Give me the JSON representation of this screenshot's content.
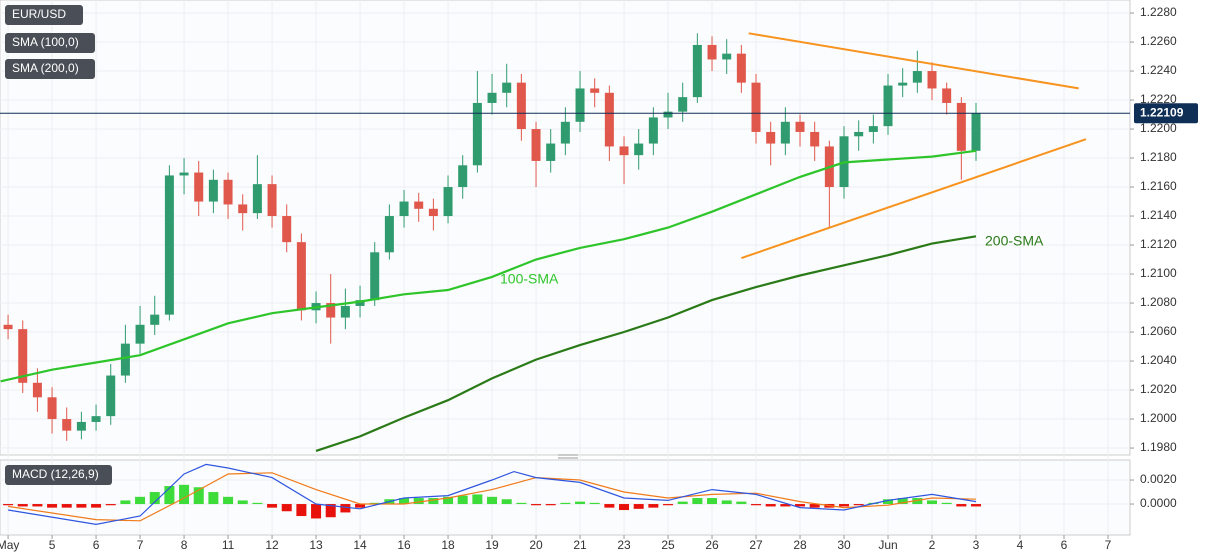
{
  "chart_data": [
    {
      "type": "candlestick",
      "title": "EUR/USD",
      "x": [
        0,
        1,
        2,
        3,
        4,
        5,
        6,
        7,
        8,
        9,
        10,
        11,
        12,
        13,
        14,
        15,
        16,
        17,
        18,
        19,
        20,
        21,
        22,
        23,
        24,
        25,
        26,
        27,
        28,
        29,
        30,
        31,
        32,
        33,
        34,
        35,
        36,
        37,
        38,
        39,
        40,
        41,
        42,
        43,
        44,
        45,
        46,
        47,
        48,
        49,
        50,
        51,
        52,
        53,
        54,
        55,
        56,
        57,
        58,
        59,
        60,
        61,
        62,
        63,
        64,
        65,
        66
      ],
      "open": [
        1.2065,
        1.2062,
        1.2025,
        1.2015,
        1.2,
        1.1992,
        1.1998,
        1.2002,
        1.203,
        1.2052,
        1.2065,
        1.2072,
        1.2168,
        1.217,
        1.215,
        1.2165,
        1.2148,
        1.2142,
        1.2162,
        1.214,
        1.2122,
        1.2075,
        1.208,
        1.207,
        1.2078,
        1.2082,
        1.2115,
        1.214,
        1.215,
        1.2145,
        1.214,
        1.216,
        1.2175,
        1.2218,
        1.2225,
        1.2232,
        1.22,
        1.2178,
        1.219,
        1.2205,
        1.2228,
        1.2225,
        1.2188,
        1.2182,
        1.219,
        1.2208,
        1.2212,
        1.2222,
        1.2258,
        1.2248,
        1.2252,
        1.2232,
        1.2198,
        1.219,
        1.2205,
        1.2198,
        1.2188,
        1.216,
        1.2195,
        1.2198,
        1.2202,
        1.223,
        1.2232,
        1.224,
        1.2228,
        1.2218,
        1.2185
      ],
      "high": [
        1.2072,
        1.2068,
        1.2035,
        1.2022,
        1.2008,
        1.2005,
        1.201,
        1.2038,
        1.2065,
        1.2078,
        1.2085,
        1.2175,
        1.218,
        1.2178,
        1.2172,
        1.217,
        1.2155,
        1.2182,
        1.2168,
        1.2148,
        1.2128,
        1.2088,
        1.21,
        1.209,
        1.2092,
        1.2122,
        1.2148,
        1.2158,
        1.2156,
        1.2152,
        1.2168,
        1.2182,
        1.224,
        1.2238,
        1.2245,
        1.2238,
        1.2205,
        1.22,
        1.2215,
        1.224,
        1.2235,
        1.223,
        1.2195,
        1.22,
        1.2215,
        1.2225,
        1.2232,
        1.2266,
        1.2264,
        1.2262,
        1.2258,
        1.2238,
        1.2205,
        1.2215,
        1.221,
        1.2205,
        1.2192,
        1.2202,
        1.2206,
        1.221,
        1.2238,
        1.2242,
        1.2254,
        1.2246,
        1.2232,
        1.2222,
        1.2218
      ],
      "low": [
        1.2055,
        1.2018,
        1.2005,
        1.199,
        1.1985,
        1.1986,
        1.1992,
        1.1996,
        1.2025,
        1.2045,
        1.2058,
        1.2068,
        1.2155,
        1.214,
        1.2142,
        1.2138,
        1.213,
        1.2138,
        1.2132,
        1.2115,
        1.2068,
        1.2066,
        1.2052,
        1.2062,
        1.207,
        1.2078,
        1.211,
        1.2132,
        1.2136,
        1.213,
        1.2135,
        1.2152,
        1.217,
        1.221,
        1.2215,
        1.2192,
        1.216,
        1.217,
        1.2182,
        1.2198,
        1.2215,
        1.2178,
        1.2162,
        1.2172,
        1.2182,
        1.22,
        1.2205,
        1.2218,
        1.224,
        1.2238,
        1.2225,
        1.219,
        1.2175,
        1.2182,
        1.2188,
        1.2178,
        1.2132,
        1.2152,
        1.2185,
        1.219,
        1.2196,
        1.2222,
        1.2225,
        1.222,
        1.221,
        1.2165,
        1.2178
      ],
      "close": [
        1.2062,
        1.2025,
        1.2015,
        1.2,
        1.1992,
        1.1998,
        1.2002,
        1.203,
        1.2052,
        1.2065,
        1.2072,
        1.2168,
        1.217,
        1.215,
        1.2165,
        1.2148,
        1.2142,
        1.2162,
        1.214,
        1.2122,
        1.2075,
        1.208,
        1.207,
        1.2078,
        1.2082,
        1.2115,
        1.214,
        1.215,
        1.2145,
        1.214,
        1.216,
        1.2175,
        1.2218,
        1.2225,
        1.2232,
        1.22,
        1.2178,
        1.219,
        1.2205,
        1.2228,
        1.2225,
        1.2188,
        1.2182,
        1.219,
        1.2208,
        1.2212,
        1.2222,
        1.2258,
        1.2248,
        1.2252,
        1.2232,
        1.2198,
        1.219,
        1.2205,
        1.2198,
        1.2188,
        1.216,
        1.2195,
        1.2198,
        1.2202,
        1.223,
        1.2232,
        1.224,
        1.2228,
        1.2218,
        1.2185,
        1.2211
      ],
      "up_color": "#2f9b6f",
      "down_color": "#e0574b",
      "xlim": [
        -0.55,
        76.5
      ],
      "ylim": [
        1.19752,
        1.2289
      ],
      "yticks": [
        {
          "value": 1.198,
          "label": "1.1980"
        },
        {
          "value": 1.2,
          "label": "1.2000"
        },
        {
          "value": 1.202,
          "label": "1.2020"
        },
        {
          "value": 1.204,
          "label": "1.2040"
        },
        {
          "value": 1.206,
          "label": "1.2060"
        },
        {
          "value": 1.208,
          "label": "1.2080"
        },
        {
          "value": 1.21,
          "label": "1.2100"
        },
        {
          "value": 1.212,
          "label": "1.2120"
        },
        {
          "value": 1.214,
          "label": "1.2140"
        },
        {
          "value": 1.216,
          "label": "1.2160"
        },
        {
          "value": 1.218,
          "label": "1.2180"
        },
        {
          "value": 1.22,
          "label": "1.2200"
        },
        {
          "value": 1.222,
          "label": "1.2220"
        },
        {
          "value": 1.224,
          "label": "1.2240"
        },
        {
          "value": 1.226,
          "label": "1.2260"
        },
        {
          "value": 1.228,
          "label": "1.2280"
        }
      ],
      "grid": true,
      "indicators": [
        {
          "name": "SMA (100,0)",
          "label": "100-SMA",
          "color": "#2ec52b",
          "x": [
            -0.5,
            3,
            6,
            9,
            12,
            15,
            18,
            21,
            24,
            27,
            30,
            33,
            36,
            39,
            42,
            45,
            48,
            51,
            54,
            57,
            60,
            63,
            66
          ],
          "values": [
            1.2026,
            1.2034,
            1.2039,
            1.2044,
            1.2055,
            1.2066,
            1.2073,
            1.2077,
            1.2081,
            1.2086,
            1.2089,
            1.2098,
            1.211,
            1.2118,
            1.2124,
            1.2132,
            1.2143,
            1.2155,
            1.2167,
            1.2177,
            1.2179,
            1.2181,
            1.2185
          ]
        },
        {
          "name": "SMA (200,0)",
          "label": "200-SMA",
          "color": "#2a7a18",
          "x": [
            21,
            24,
            27,
            30,
            33,
            36,
            39,
            42,
            45,
            48,
            51,
            54,
            57,
            60,
            63,
            66
          ],
          "values": [
            1.1978,
            1.1988,
            1.2001,
            1.2013,
            1.2028,
            1.2041,
            1.2051,
            1.206,
            1.207,
            1.2082,
            1.2091,
            1.2099,
            1.2106,
            1.2113,
            1.2121,
            1.2126
          ]
        }
      ],
      "trend_lines": [
        {
          "color": "#f7931e",
          "x": [
            50.5,
            73
          ],
          "values": [
            1.2266,
            1.2228
          ]
        },
        {
          "color": "#f7931e",
          "x": [
            50,
            73.5
          ],
          "values": [
            1.2111,
            1.2193
          ]
        }
      ],
      "last_price": 1.22109,
      "last_price_color": "#0f2f57"
    },
    {
      "type": "macd",
      "title": "MACD (12,26,9)",
      "xlim": [
        -0.55,
        76.5
      ],
      "ylim": [
        -0.00258,
        0.00367
      ],
      "yticks": [
        {
          "value": 0.002,
          "label": "0.0020"
        },
        {
          "value": 0,
          "label": "0.0000"
        }
      ],
      "xticks": [
        {
          "value": 0,
          "label": "May"
        },
        {
          "value": 3,
          "label": "5"
        },
        {
          "value": 6,
          "label": "6"
        },
        {
          "value": 9,
          "label": "7"
        },
        {
          "value": 12,
          "label": "8"
        },
        {
          "value": 15,
          "label": "11"
        },
        {
          "value": 18,
          "label": "12"
        },
        {
          "value": 21,
          "label": "13"
        },
        {
          "value": 24,
          "label": "14"
        },
        {
          "value": 27,
          "label": "16"
        },
        {
          "value": 30,
          "label": "18"
        },
        {
          "value": 33,
          "label": "19"
        },
        {
          "value": 36,
          "label": "20"
        },
        {
          "value": 39,
          "label": "21"
        },
        {
          "value": 42,
          "label": "23"
        },
        {
          "value": 45,
          "label": "25"
        },
        {
          "value": 48,
          "label": "26"
        },
        {
          "value": 51,
          "label": "27"
        },
        {
          "value": 54,
          "label": "28"
        },
        {
          "value": 57,
          "label": "30"
        },
        {
          "value": 60,
          "label": "Jun"
        },
        {
          "value": 63,
          "label": "2"
        },
        {
          "value": 66,
          "label": "3"
        },
        {
          "value": 69,
          "label": "4"
        },
        {
          "value": 72,
          "label": "6"
        },
        {
          "value": 75,
          "label": "7"
        }
      ],
      "histogram": {
        "positive_color": "#3ddc3a",
        "negative_color": "#e8120c",
        "x": [
          0,
          1,
          2,
          3,
          4,
          5,
          6,
          7,
          8,
          9,
          10,
          11,
          12,
          13,
          14,
          15,
          16,
          17,
          18,
          19,
          20,
          21,
          22,
          23,
          24,
          25,
          26,
          27,
          28,
          29,
          30,
          31,
          32,
          33,
          34,
          35,
          36,
          37,
          38,
          39,
          40,
          41,
          42,
          43,
          44,
          45,
          46,
          47,
          48,
          49,
          50,
          51,
          52,
          53,
          54,
          55,
          56,
          57,
          58,
          59,
          60,
          61,
          62,
          63,
          64,
          65,
          66
        ],
        "values": [
          -0.0001,
          -0.0002,
          -0.0002,
          -0.0003,
          -0.0003,
          -0.0003,
          -0.0003,
          -0.0001,
          0.0003,
          0.0006,
          0.001,
          0.0015,
          0.0016,
          0.0014,
          0.001,
          0.0006,
          0.0003,
          0.0001,
          -0.0003,
          -0.0006,
          -0.001,
          -0.0012,
          -0.0011,
          -0.0007,
          -0.0003,
          0.0001,
          0.0004,
          0.0005,
          0.0005,
          0.0005,
          0.0006,
          0.0007,
          0.0008,
          0.0006,
          0.0004,
          0.0001,
          -0.0001,
          -0.0001,
          0.0001,
          0.0002,
          0.0001,
          -0.0003,
          -0.0005,
          -0.0004,
          -0.0003,
          -0.0001,
          0.0002,
          0.0005,
          0.0005,
          0.0003,
          0.0002,
          -0.0001,
          -0.0002,
          -0.0002,
          -0.0002,
          -0.0003,
          -0.0003,
          -0.0002,
          -0.0001,
          0.0001,
          0.0004,
          0.0005,
          0.0005,
          0.0003,
          0.0001,
          -0.0002,
          -0.0002
        ]
      },
      "macd_line": {
        "color": "#2f56e0",
        "x": [
          0,
          6,
          9,
          12,
          13.5,
          15,
          16.5,
          18,
          21,
          24,
          27,
          30,
          33,
          34.5,
          36,
          39,
          42,
          45,
          48,
          51,
          54,
          57,
          60,
          63,
          66
        ],
        "values": [
          -0.0005,
          -0.0017,
          -0.001,
          0.0025,
          0.0033,
          0.003,
          0.0026,
          0.0022,
          0.0,
          -0.0004,
          0.0005,
          0.0007,
          0.002,
          0.0027,
          0.0022,
          0.0018,
          0.0005,
          0.0003,
          0.0012,
          0.0008,
          -0.0003,
          -0.0005,
          0.0003,
          0.0008,
          0.0002
        ]
      },
      "signal_line": {
        "color": "#f07b1a",
        "x": [
          0,
          6,
          9,
          12,
          15,
          18,
          21,
          24,
          27,
          30,
          33,
          36,
          39,
          42,
          45,
          48,
          51,
          54,
          57,
          60,
          63,
          66
        ],
        "values": [
          -0.0002,
          -0.0013,
          -0.0014,
          0.0005,
          0.0025,
          0.0026,
          0.0012,
          0.0,
          0.0,
          0.0005,
          0.0012,
          0.0022,
          0.002,
          0.001,
          0.0005,
          0.0008,
          0.0009,
          0.0002,
          -0.0003,
          -0.0001,
          0.0005,
          0.0004
        ]
      }
    }
  ]
}
